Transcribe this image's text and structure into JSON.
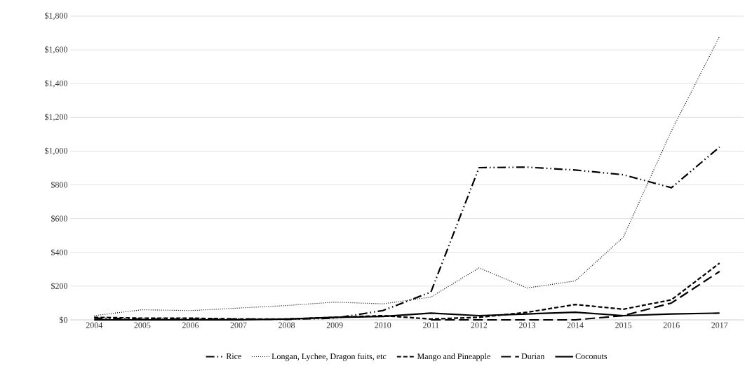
{
  "chart_data": {
    "type": "line",
    "categories": [
      "2004",
      "2005",
      "2006",
      "2007",
      "2008",
      "2009",
      "2010",
      "2011",
      "2012",
      "2013",
      "2014",
      "2015",
      "2016",
      "2017"
    ],
    "series": [
      {
        "name": "Rice",
        "color": "#000000",
        "line_style": "dashdot",
        "values": [
          10,
          5,
          5,
          5,
          3,
          10,
          55,
          165,
          902,
          905,
          888,
          860,
          783,
          1024
        ]
      },
      {
        "name": "Longan, Lychee, Dragon fuits, etc",
        "color": "#000000",
        "line_style": "dotted",
        "values": [
          25,
          60,
          55,
          70,
          85,
          105,
          95,
          135,
          308,
          189,
          231,
          490,
          1120,
          1680
        ]
      },
      {
        "name": "Mango and Pineapple",
        "color": "#000000",
        "line_style": "dashed",
        "values": [
          15,
          10,
          10,
          5,
          5,
          15,
          25,
          5,
          15,
          45,
          91,
          63,
          119,
          336
        ]
      },
      {
        "name": "Durian",
        "color": "#000000",
        "line_style": "longdashed",
        "values": [
          null,
          null,
          null,
          null,
          null,
          null,
          null,
          0,
          0,
          0,
          0,
          25,
          100,
          287
        ]
      },
      {
        "name": "Coconuts",
        "color": "#000000",
        "line_style": "solid",
        "values": [
          0,
          0,
          0,
          0,
          5,
          15,
          20,
          40,
          25,
          35,
          45,
          25,
          35,
          40
        ]
      }
    ],
    "ylim": [
      0,
      1800
    ],
    "yticks": [
      {
        "value": 0,
        "label": "$0"
      },
      {
        "value": 200,
        "label": "$200"
      },
      {
        "value": 400,
        "label": "$400"
      },
      {
        "value": 600,
        "label": "$600"
      },
      {
        "value": 800,
        "label": "$800"
      },
      {
        "value": 1000,
        "label": "$1,000"
      },
      {
        "value": 1200,
        "label": "$1,200"
      },
      {
        "value": 1400,
        "label": "$1,400"
      },
      {
        "value": 1600,
        "label": "$1,600"
      },
      {
        "value": 1800,
        "label": "$1,800"
      }
    ],
    "grid": "y",
    "legend": "bottom",
    "marker": "none"
  }
}
